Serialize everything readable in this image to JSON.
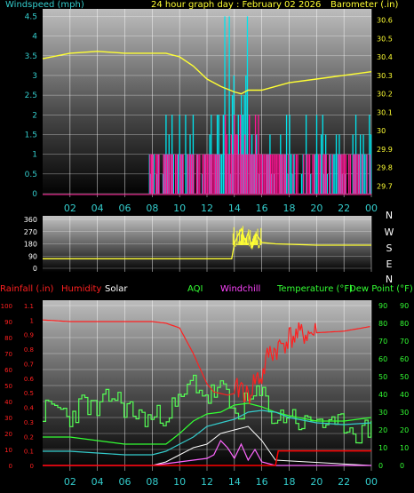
{
  "page": {
    "header": {
      "windspeed_label": "Windspeed (mph)",
      "title": "24 hour graph day : February 02 2026",
      "barometer_label": "Barometer (.in)"
    },
    "legend": {
      "rainfall": "Rainfall (.in)",
      "humidity": "Humidity",
      "solar": "Solar",
      "aqi": "AQI",
      "windchill": "Windchill",
      "temperature": "Temperature (°F)",
      "dewpoint": "Dew Point (°F)"
    },
    "direction_labels": [
      "N",
      "W",
      "S",
      "E",
      "N"
    ],
    "colors": {
      "wind": "#00e5ee",
      "gust": "#ff1493",
      "barometer": "#ffff33",
      "humidity": "#ff2020",
      "temperature": "#33ff33",
      "dewpoint": "#ff44ff",
      "solar": "#ffffff",
      "rainfall": "#ff0000",
      "aqi": "#55ff55",
      "windchill": "#ff66ff",
      "teal": "#33cccc"
    }
  },
  "chart_data": [
    {
      "type": "line",
      "name": "wind_barometer",
      "xlabel": "",
      "x_ticks": [
        "02",
        "04",
        "06",
        "08",
        "10",
        "12",
        "14",
        "16",
        "18",
        "20",
        "22",
        "00"
      ],
      "y_left_ticks": [
        "0",
        "0.5",
        "1",
        "1.5",
        "2",
        "2.5",
        "3",
        "3.5",
        "4",
        "4.5"
      ],
      "y_left_range": [
        0,
        4.6
      ],
      "y_right_ticks": [
        "29.7",
        "29.8",
        "29.9",
        "30",
        "30.1",
        "30.2",
        "30.3",
        "30.4",
        "30.5",
        "30.6"
      ],
      "y_right_range": [
        29.64,
        30.66
      ],
      "barometer": {
        "hours": [
          0,
          2,
          4,
          6,
          8,
          9,
          10,
          11,
          12,
          13,
          14,
          14.5,
          15,
          16,
          17,
          18,
          20,
          22,
          24
        ],
        "values": [
          30.39,
          30.42,
          30.43,
          30.42,
          30.42,
          30.42,
          30.4,
          30.35,
          30.28,
          30.24,
          30.21,
          30.2,
          30.22,
          30.22,
          30.24,
          30.26,
          30.28,
          30.3,
          30.32
        ]
      },
      "wind_activity_hours": [
        7.8,
        24
      ],
      "wind_peak_value": 4.5,
      "gust_peak_value": 2.2
    },
    {
      "type": "line",
      "name": "wind_direction",
      "y_ticks": [
        "0",
        "90",
        "180",
        "270",
        "360"
      ],
      "y_range": [
        0,
        360
      ],
      "direction": {
        "hours": [
          0,
          4,
          8,
          11,
          13,
          13.8,
          14,
          14.2,
          14.5,
          14.8,
          15,
          15.3,
          15.6,
          16,
          17,
          20,
          24
        ],
        "values": [
          70,
          70,
          70,
          70,
          70,
          70,
          180,
          230,
          290,
          200,
          260,
          150,
          250,
          190,
          180,
          170,
          170
        ]
      }
    },
    {
      "type": "line",
      "name": "weather_lower",
      "y_left_ticks": [
        "0",
        "10",
        "20",
        "30",
        "40",
        "50",
        "60",
        "70",
        "80",
        "90",
        "100"
      ],
      "y_rain_ticks": [
        "0",
        "0.1",
        "0.2",
        "0.3",
        "0.4",
        "0.5",
        "0.6",
        "0.7",
        "0.8",
        "0.9",
        "1",
        "1.1"
      ],
      "y_right_ticks": [
        "0",
        "10",
        "20",
        "30",
        "40",
        "50",
        "60",
        "70",
        "80",
        "90"
      ],
      "y_right_range": [
        0,
        90
      ],
      "humidity": {
        "hours": [
          0,
          2,
          4,
          6,
          8,
          9,
          10,
          11,
          12,
          12.5,
          13,
          13.5,
          14,
          14.5,
          15,
          15.5,
          16,
          16.5,
          17,
          18,
          19,
          20,
          22,
          24
        ],
        "values": [
          91,
          90,
          90,
          90,
          90,
          89,
          86,
          70,
          51,
          46,
          45,
          44,
          45,
          50,
          42,
          54,
          55,
          70,
          72,
          80,
          82,
          83,
          84,
          87
        ]
      },
      "temperature": {
        "hours": [
          0,
          2,
          4,
          6,
          8,
          9,
          10,
          11,
          12,
          13,
          14,
          15,
          16,
          17,
          18,
          20,
          22,
          24
        ],
        "values": [
          16,
          16,
          14,
          12,
          12,
          12,
          18,
          25,
          29,
          30,
          34,
          35,
          33,
          30,
          28,
          25,
          25,
          27
        ]
      },
      "dewpoint": {
        "hours": [
          0,
          2,
          4,
          6,
          8,
          9,
          10,
          11,
          12,
          13,
          14,
          15,
          16,
          17,
          18,
          20,
          22,
          24
        ],
        "values": [
          8,
          8,
          7,
          6,
          6,
          8,
          12,
          16,
          22,
          24,
          26,
          30,
          31,
          30,
          27,
          24,
          23,
          24
        ]
      },
      "aqi": {
        "hours": [
          0,
          1,
          2,
          3,
          4,
          5,
          6,
          7,
          8,
          9,
          10,
          11,
          12,
          13,
          14,
          15,
          16,
          17,
          18,
          19,
          20,
          21,
          22,
          23,
          24
        ],
        "values": [
          30,
          33,
          27,
          36,
          30,
          40,
          33,
          28,
          26,
          30,
          35,
          48,
          38,
          44,
          28,
          36,
          40,
          25,
          30,
          22,
          28,
          20,
          24,
          18,
          21
        ]
      },
      "solar": {
        "hours": [
          0,
          2,
          4,
          6,
          8,
          9,
          10,
          11,
          12,
          13,
          14,
          15,
          16,
          17,
          24
        ],
        "values": [
          0,
          0,
          0,
          0,
          0,
          2,
          6,
          10,
          12,
          18,
          20,
          22,
          14,
          3,
          0
        ]
      },
      "windchill": {
        "hours": [
          0,
          8,
          9,
          10,
          11,
          12,
          12.5,
          13,
          13.5,
          14,
          14.5,
          15,
          15.5,
          16,
          17,
          24
        ],
        "values": [
          0,
          0,
          1,
          2,
          3,
          4,
          6,
          14,
          10,
          4,
          12,
          3,
          9,
          2,
          0,
          0
        ]
      },
      "rainfall_in": {
        "hours": [
          0,
          17,
          17.2,
          24
        ],
        "values": [
          0,
          0,
          0.1,
          0.1
        ]
      }
    }
  ]
}
